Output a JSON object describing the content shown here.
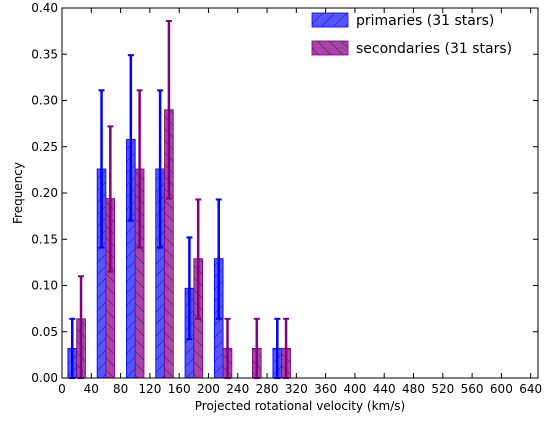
{
  "chart_data": {
    "type": "bar",
    "title": "",
    "xlabel": "Projected rotational velocity (km/s)",
    "ylabel": "Frequency",
    "xlim": [
      0,
      650
    ],
    "ylim": [
      0,
      0.4
    ],
    "x_ticks": [
      "0",
      "40",
      "80",
      "120",
      "160",
      "200",
      "240",
      "280",
      "320",
      "360",
      "400",
      "440",
      "480",
      "520",
      "560",
      "600",
      "640"
    ],
    "y_ticks": [
      "0.00",
      "0.05",
      "0.10",
      "0.15",
      "0.20",
      "0.25",
      "0.30",
      "0.35",
      "0.40"
    ],
    "bin_width": 40,
    "bin_starts": [
      0,
      40,
      80,
      120,
      160,
      200,
      240,
      280,
      320,
      360,
      400,
      440,
      480,
      520,
      560,
      600
    ],
    "legend_position": "top-right",
    "series": [
      {
        "name": "primaries (31 stars)",
        "color": "#5555ff",
        "edge_color": "#0000ff",
        "hatch": "forward-diagonal",
        "values": [
          0.032,
          0.226,
          0.258,
          0.226,
          0.097,
          0.129,
          0.0,
          0.032,
          0.0,
          0.0,
          0.0,
          0.0,
          0.0,
          0.0,
          0.0,
          0.0
        ],
        "err_low": [
          0.0,
          0.141,
          0.17,
          0.141,
          0.042,
          0.064,
          0.0,
          0.0,
          0.0,
          0.0,
          0.0,
          0.0,
          0.0,
          0.0,
          0.0,
          0.0
        ],
        "err_high": [
          0.064,
          0.311,
          0.349,
          0.311,
          0.152,
          0.193,
          0.0,
          0.064,
          0.0,
          0.0,
          0.0,
          0.0,
          0.0,
          0.0,
          0.0,
          0.0
        ]
      },
      {
        "name": "secondaries (31 stars)",
        "color": "#aa44aa",
        "edge_color": "#800080",
        "hatch": "back-diagonal",
        "values": [
          0.064,
          0.194,
          0.226,
          0.29,
          0.129,
          0.032,
          0.032,
          0.032,
          0.0,
          0.0,
          0.0,
          0.0,
          0.0,
          0.0,
          0.0,
          0.0
        ],
        "err_low": [
          0.0,
          0.115,
          0.141,
          0.194,
          0.064,
          0.0,
          0.0,
          0.0,
          0.0,
          0.0,
          0.0,
          0.0,
          0.0,
          0.0,
          0.0,
          0.0
        ],
        "err_high": [
          0.11,
          0.272,
          0.311,
          0.386,
          0.193,
          0.064,
          0.064,
          0.064,
          0.0,
          0.0,
          0.0,
          0.0,
          0.0,
          0.0,
          0.0,
          0.0
        ]
      }
    ]
  }
}
